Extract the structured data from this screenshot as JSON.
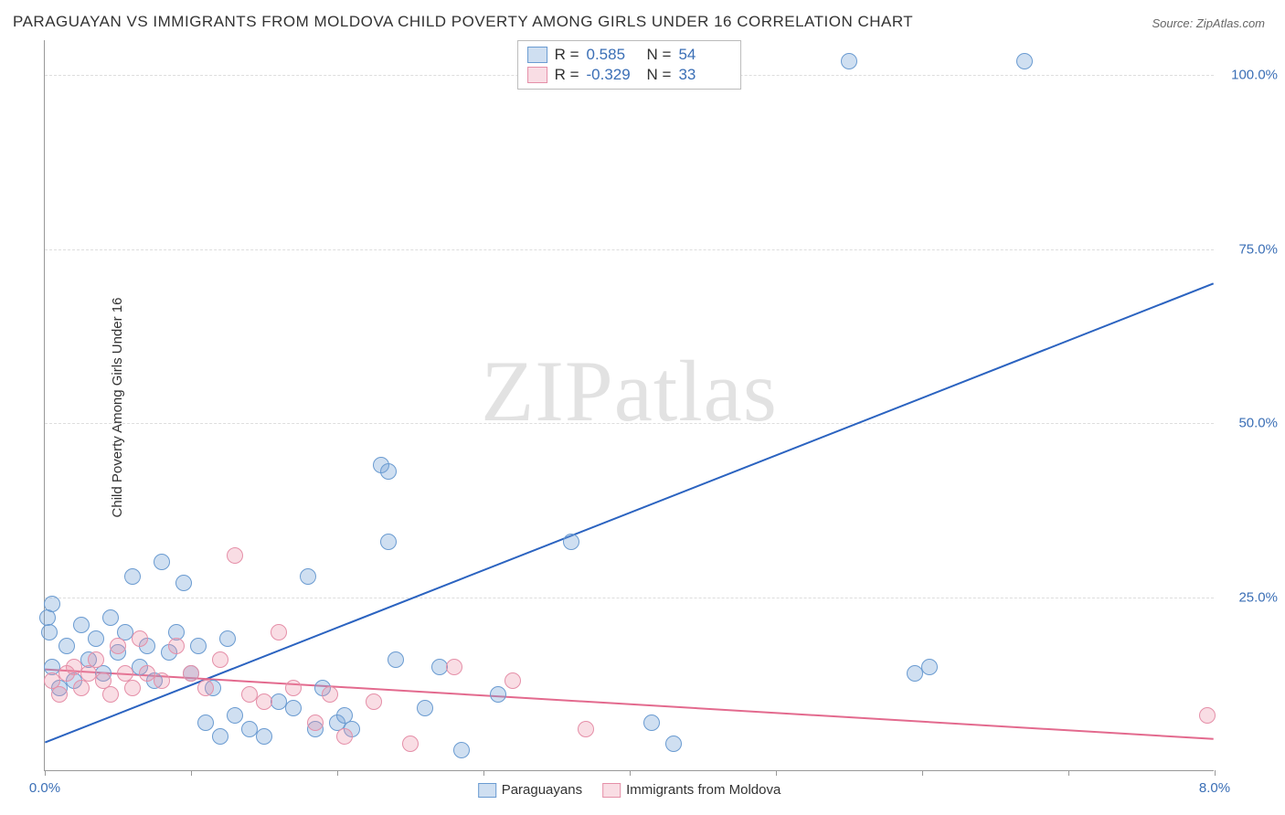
{
  "title": "PARAGUAYAN VS IMMIGRANTS FROM MOLDOVA CHILD POVERTY AMONG GIRLS UNDER 16 CORRELATION CHART",
  "source": "Source: ZipAtlas.com",
  "ylabel": "Child Poverty Among Girls Under 16",
  "watermark_a": "ZIP",
  "watermark_b": "atlas",
  "chart": {
    "type": "scatter",
    "xlim": [
      0,
      8
    ],
    "ylim": [
      0,
      105
    ],
    "xticks": [
      0,
      1,
      2,
      3,
      4,
      5,
      6,
      7,
      8
    ],
    "xtick_labels": {
      "0": "0.0%",
      "8": "8.0%"
    },
    "yticks": [
      25,
      50,
      75,
      100
    ],
    "ytick_labels": {
      "25": "25.0%",
      "50": "50.0%",
      "75": "75.0%",
      "100": "100.0%"
    },
    "grid_color": "#dddddd",
    "background_color": "#ffffff",
    "axis_color": "#999999",
    "tick_label_color": "#3b6fb6",
    "series": [
      {
        "name": "Paraguayans",
        "fill": "rgba(118,162,214,0.35)",
        "stroke": "#6a9bd1",
        "line_color": "#2b63c0",
        "marker_r": 9,
        "R": "0.585",
        "N": "54",
        "trend": {
          "x1": 0,
          "y1": 4,
          "x2": 8,
          "y2": 70
        },
        "points": [
          [
            0.02,
            22
          ],
          [
            0.03,
            20
          ],
          [
            0.05,
            24
          ],
          [
            0.05,
            15
          ],
          [
            0.1,
            12
          ],
          [
            0.15,
            18
          ],
          [
            0.2,
            13
          ],
          [
            0.25,
            21
          ],
          [
            0.3,
            16
          ],
          [
            0.35,
            19
          ],
          [
            0.4,
            14
          ],
          [
            0.45,
            22
          ],
          [
            0.5,
            17
          ],
          [
            0.55,
            20
          ],
          [
            0.6,
            28
          ],
          [
            0.65,
            15
          ],
          [
            0.7,
            18
          ],
          [
            0.75,
            13
          ],
          [
            0.8,
            30
          ],
          [
            0.85,
            17
          ],
          [
            0.9,
            20
          ],
          [
            0.95,
            27
          ],
          [
            1.0,
            14
          ],
          [
            1.05,
            18
          ],
          [
            1.1,
            7
          ],
          [
            1.15,
            12
          ],
          [
            1.2,
            5
          ],
          [
            1.25,
            19
          ],
          [
            1.3,
            8
          ],
          [
            1.4,
            6
          ],
          [
            1.5,
            5
          ],
          [
            1.6,
            10
          ],
          [
            1.7,
            9
          ],
          [
            1.8,
            28
          ],
          [
            1.85,
            6
          ],
          [
            1.9,
            12
          ],
          [
            2.0,
            7
          ],
          [
            2.05,
            8
          ],
          [
            2.1,
            6
          ],
          [
            2.3,
            44
          ],
          [
            2.35,
            43
          ],
          [
            2.35,
            33
          ],
          [
            2.4,
            16
          ],
          [
            2.6,
            9
          ],
          [
            2.7,
            15
          ],
          [
            2.85,
            3
          ],
          [
            3.1,
            11
          ],
          [
            3.6,
            33
          ],
          [
            4.15,
            7
          ],
          [
            4.3,
            4
          ],
          [
            5.5,
            102
          ],
          [
            5.95,
            14
          ],
          [
            6.7,
            102
          ],
          [
            6.05,
            15
          ]
        ]
      },
      {
        "name": "Immigrants from Moldova",
        "fill": "rgba(234,142,166,0.30)",
        "stroke": "#e58fa8",
        "line_color": "#e36a8e",
        "marker_r": 9,
        "R": "-0.329",
        "N": "33",
        "trend": {
          "x1": 0,
          "y1": 14.5,
          "x2": 8,
          "y2": 4.5
        },
        "points": [
          [
            0.05,
            13
          ],
          [
            0.1,
            11
          ],
          [
            0.15,
            14
          ],
          [
            0.2,
            15
          ],
          [
            0.25,
            12
          ],
          [
            0.3,
            14
          ],
          [
            0.35,
            16
          ],
          [
            0.4,
            13
          ],
          [
            0.45,
            11
          ],
          [
            0.5,
            18
          ],
          [
            0.55,
            14
          ],
          [
            0.6,
            12
          ],
          [
            0.65,
            19
          ],
          [
            0.7,
            14
          ],
          [
            0.8,
            13
          ],
          [
            0.9,
            18
          ],
          [
            1.0,
            14
          ],
          [
            1.1,
            12
          ],
          [
            1.2,
            16
          ],
          [
            1.3,
            31
          ],
          [
            1.4,
            11
          ],
          [
            1.5,
            10
          ],
          [
            1.6,
            20
          ],
          [
            1.7,
            12
          ],
          [
            1.85,
            7
          ],
          [
            1.95,
            11
          ],
          [
            2.05,
            5
          ],
          [
            2.25,
            10
          ],
          [
            2.5,
            4
          ],
          [
            2.8,
            15
          ],
          [
            3.2,
            13
          ],
          [
            3.7,
            6
          ],
          [
            7.95,
            8
          ]
        ]
      }
    ]
  },
  "legend_top": {
    "r_label": "R =",
    "n_label": "N ="
  },
  "legend_bottom_labels": [
    "Paraguayans",
    "Immigrants from Moldova"
  ]
}
